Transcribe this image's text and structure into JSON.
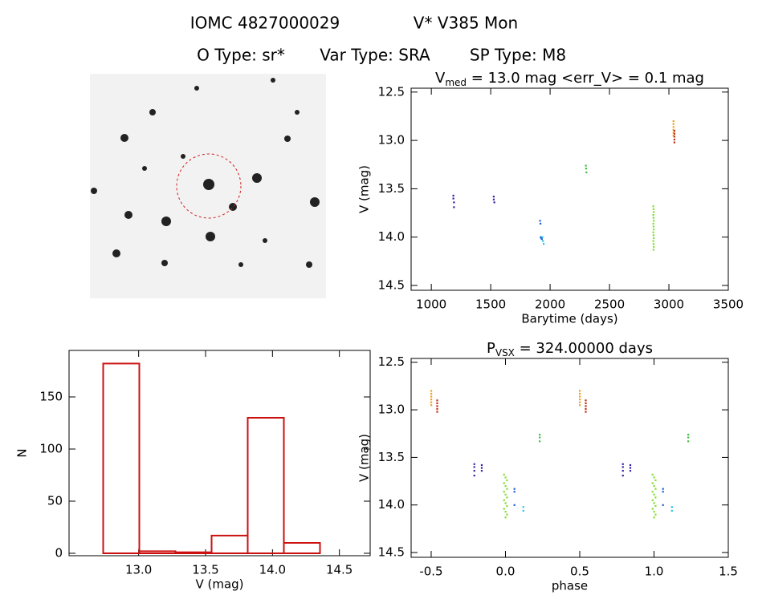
{
  "header": {
    "id": "IOMC 4827000029",
    "name": "V* V385 Mon",
    "otype": "O Type: sr*",
    "vartype": "Var Type: SRA",
    "sptype": "SP Type: M8"
  },
  "chart_data": [
    {
      "type": "scatter",
      "title": "V",
      "title_sub": "med",
      "title_rest": " = 13.0 mag <err_V> = 0.1 mag",
      "x_label": "Barytime (days)",
      "y_label": "V (mag)",
      "xlim": [
        830,
        3500
      ],
      "ylim": [
        14.55,
        12.46
      ],
      "xticks": [
        1000,
        1500,
        2000,
        2500,
        3000,
        3500
      ],
      "yticks": [
        {
          "value": 12.5,
          "label": "12.5"
        },
        {
          "value": 13.0,
          "label": "13.0"
        },
        {
          "value": 13.5,
          "label": "13.5"
        },
        {
          "value": 14.0,
          "label": "14.0"
        },
        {
          "value": 14.5,
          "label": "14.5"
        }
      ],
      "series": [
        {
          "color": "#3a20a8",
          "x": [
            1185,
            1185,
            1190,
            1190,
            1525,
            1525,
            1530
          ],
          "values": [
            13.57,
            13.6,
            13.64,
            13.69,
            13.58,
            13.61,
            13.64
          ]
        },
        {
          "color": "#2060e0",
          "x": [
            1915,
            1918,
            1920,
            1925,
            1930
          ],
          "values": [
            13.83,
            13.86,
            14.0,
            14.01,
            14.02
          ]
        },
        {
          "color": "#20c8e8",
          "x": [
            1935,
            1940,
            1945
          ],
          "values": [
            14.0,
            14.04,
            14.07
          ]
        },
        {
          "color": "#40c040",
          "x": [
            2300,
            2302,
            2305
          ],
          "values": [
            13.26,
            13.29,
            13.33
          ]
        },
        {
          "color": "#80e030",
          "x": [
            2868,
            2870,
            2872,
            2868,
            2870,
            2872,
            2868,
            2870,
            2872,
            2868,
            2870,
            2872,
            2868,
            2870,
            2872,
            2870
          ],
          "values": [
            13.68,
            13.71,
            13.74,
            13.77,
            13.8,
            13.83,
            13.86,
            13.89,
            13.92,
            13.95,
            13.98,
            14.01,
            14.04,
            14.07,
            14.1,
            14.13
          ]
        },
        {
          "color": "#f0a020",
          "x": [
            3038,
            3038,
            3038,
            3038,
            3038,
            3038
          ],
          "values": [
            12.8,
            12.83,
            12.86,
            12.89,
            12.92,
            12.95
          ]
        },
        {
          "color": "#c03010",
          "x": [
            3046,
            3046,
            3046,
            3046,
            3046
          ],
          "values": [
            12.9,
            12.93,
            12.96,
            12.99,
            13.02
          ]
        }
      ]
    },
    {
      "type": "histogram",
      "x_label": "V (mag)",
      "y_label": "N",
      "color": "#cc1010",
      "bins": [
        12.735,
        13.005,
        13.275,
        13.545,
        13.815,
        14.085,
        14.355
      ],
      "values": [
        182,
        2,
        1,
        17,
        130,
        10
      ],
      "xlim": [
        12.48,
        14.73
      ],
      "ylim": [
        -2.3,
        194.6
      ],
      "xticks": [
        {
          "value": 13.0,
          "label": "13.0"
        },
        {
          "value": 13.5,
          "label": "13.5"
        },
        {
          "value": 14.0,
          "label": "14.0"
        },
        {
          "value": 14.5,
          "label": "14.5"
        }
      ],
      "yticks": [
        0,
        50,
        100,
        150
      ]
    },
    {
      "type": "scatter",
      "title": "P",
      "title_sub": "VSX",
      "title_rest": " = 324.00000 days",
      "x_label": "phase",
      "y_label": "V (mag)",
      "xlim": [
        -0.635,
        1.5
      ],
      "ylim": [
        14.55,
        12.46
      ],
      "xticks": [
        {
          "value": -0.5,
          "label": "-0.5"
        },
        {
          "value": 0.0,
          "label": "0.0"
        },
        {
          "value": 0.5,
          "label": "0.5"
        },
        {
          "value": 1.0,
          "label": "1.0"
        },
        {
          "value": 1.5,
          "label": "1.5"
        }
      ],
      "yticks": [
        {
          "value": 12.5,
          "label": "12.5"
        },
        {
          "value": 13.0,
          "label": "13.0"
        },
        {
          "value": 13.5,
          "label": "13.5"
        },
        {
          "value": 14.0,
          "label": "14.0"
        },
        {
          "value": 14.5,
          "label": "14.5"
        }
      ],
      "series": [
        {
          "color": "#3a20a8",
          "x": [
            -0.21,
            -0.21,
            -0.21,
            -0.21,
            -0.16,
            -0.16,
            -0.16,
            0.79,
            0.79,
            0.79,
            0.79,
            0.84,
            0.84,
            0.84
          ],
          "values": [
            13.57,
            13.6,
            13.64,
            13.69,
            13.58,
            13.61,
            13.64,
            13.57,
            13.6,
            13.64,
            13.69,
            13.58,
            13.61,
            13.64
          ]
        },
        {
          "color": "#2060e0",
          "x": [
            0.06,
            0.06,
            0.06,
            1.06,
            1.06,
            1.06
          ],
          "values": [
            13.83,
            13.86,
            14.0,
            13.83,
            13.86,
            14.0
          ]
        },
        {
          "color": "#20c8e8",
          "x": [
            0.12,
            0.12,
            1.12,
            1.12
          ],
          "values": [
            14.02,
            14.06,
            14.02,
            14.06
          ]
        },
        {
          "color": "#40c040",
          "x": [
            0.23,
            0.23,
            0.23,
            1.23,
            1.23,
            1.23
          ],
          "values": [
            13.26,
            13.29,
            13.33,
            13.26,
            13.29,
            13.33
          ]
        },
        {
          "color": "#80e030",
          "x": [
            -0.01,
            0.0,
            0.01,
            -0.01,
            0.0,
            0.01,
            -0.01,
            0.0,
            0.01,
            -0.01,
            0.0,
            0.01,
            -0.01,
            0.0,
            0.01,
            0.0,
            0.99,
            1.0,
            1.01,
            0.99,
            1.0,
            1.01,
            0.99,
            1.0,
            1.01,
            0.99,
            1.0,
            1.01,
            0.99,
            1.0,
            1.01,
            1.0
          ],
          "values": [
            13.68,
            13.71,
            13.74,
            13.77,
            13.8,
            13.83,
            13.86,
            13.89,
            13.92,
            13.95,
            13.98,
            14.01,
            14.04,
            14.07,
            14.1,
            14.13,
            13.68,
            13.71,
            13.74,
            13.77,
            13.8,
            13.83,
            13.86,
            13.89,
            13.92,
            13.95,
            13.98,
            14.01,
            14.04,
            14.07,
            14.1,
            14.13
          ]
        },
        {
          "color": "#f0a020",
          "x": [
            -0.5,
            -0.5,
            -0.5,
            -0.5,
            -0.5,
            -0.5,
            0.5,
            0.5,
            0.5,
            0.5,
            0.5,
            0.5
          ],
          "values": [
            12.8,
            12.83,
            12.86,
            12.89,
            12.92,
            12.95,
            12.8,
            12.83,
            12.86,
            12.89,
            12.92,
            12.95
          ]
        },
        {
          "color": "#c03010",
          "x": [
            -0.46,
            -0.46,
            -0.46,
            -0.46,
            -0.46,
            0.54,
            0.54,
            0.54,
            0.54,
            0.54
          ],
          "values": [
            12.9,
            12.93,
            12.96,
            12.99,
            13.02,
            12.9,
            12.93,
            12.96,
            12.99,
            13.02
          ]
        }
      ]
    }
  ]
}
